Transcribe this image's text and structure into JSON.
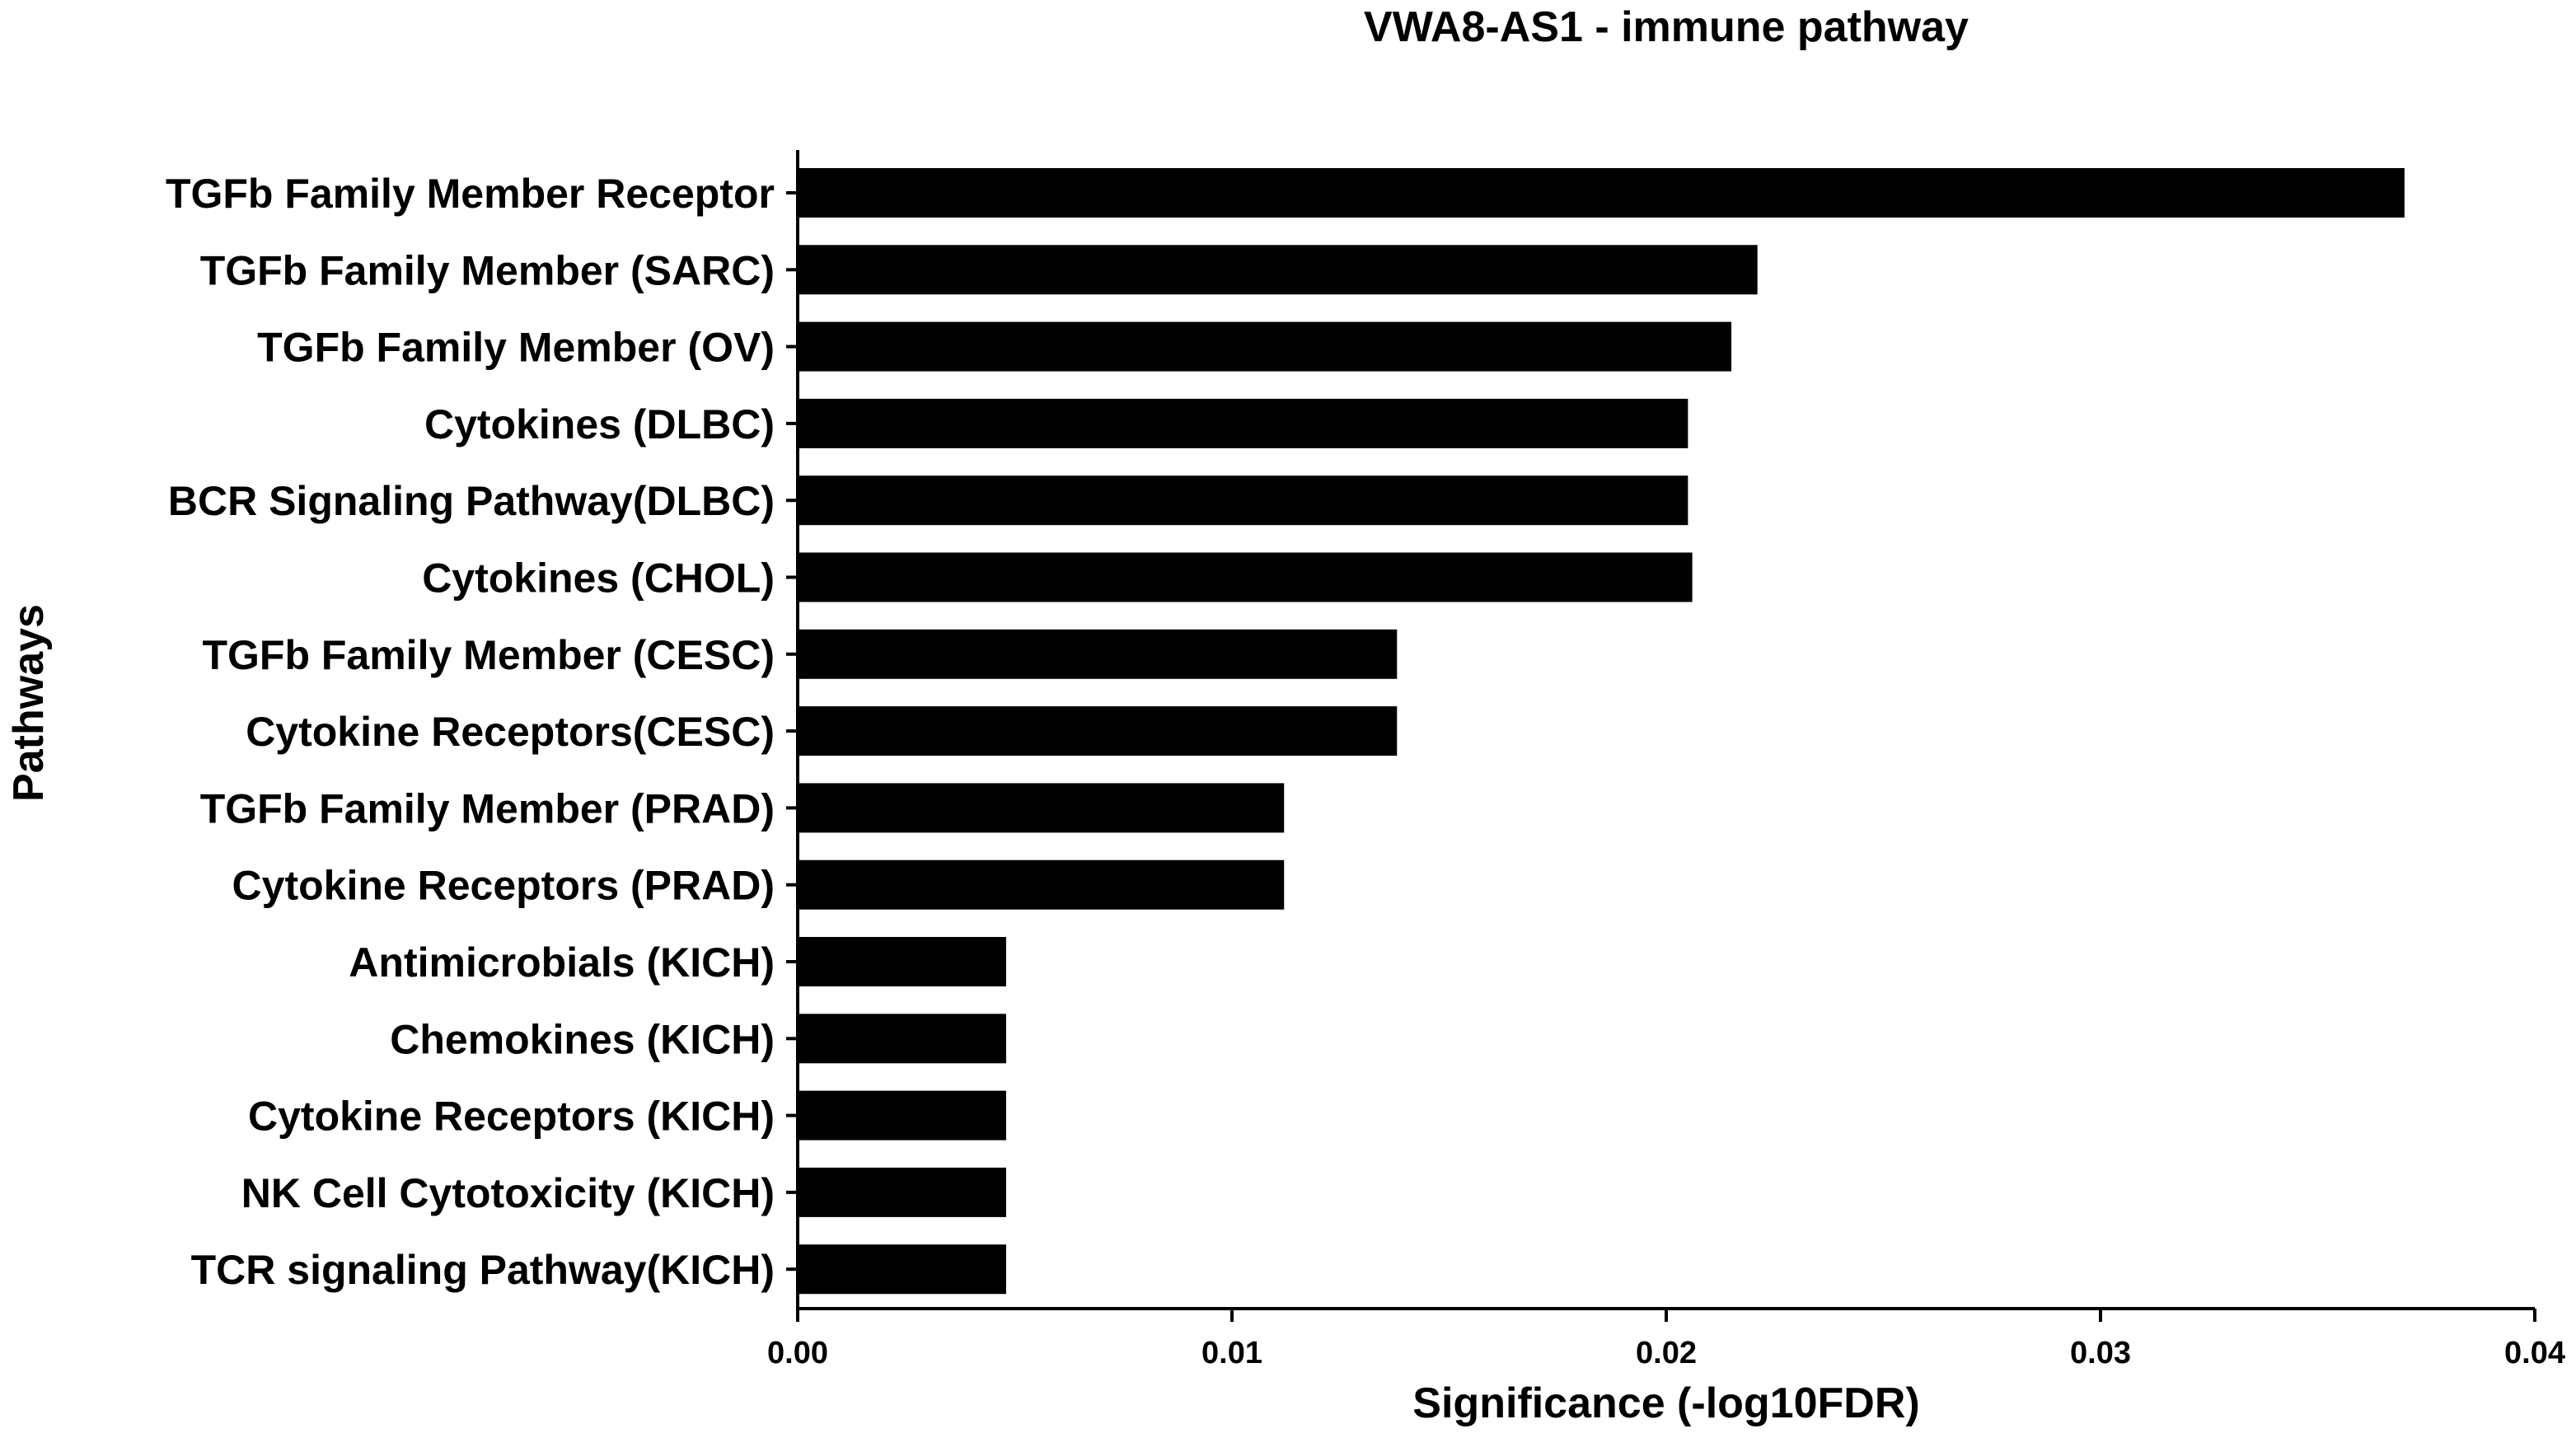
{
  "chart_data": {
    "type": "bar",
    "orientation": "horizontal",
    "title": "VWA8-AS1 - immune pathway",
    "xlabel": "Significance (-log10FDR)",
    "ylabel": "Pathways",
    "xlim": [
      0,
      0.04
    ],
    "xticks": [
      0,
      0.01,
      0.02,
      0.03,
      0.04
    ],
    "xtick_labels": [
      "0.00",
      "0.01",
      "0.02",
      "0.03",
      "0.04"
    ],
    "grid": false,
    "bar_color": "#000000",
    "categories": [
      "TGFb Family Member Receptor",
      "TGFb Family Member (SARC)",
      "TGFb Family Member (OV)",
      "Cytokines (DLBC)",
      "BCR Signaling Pathway(DLBC)",
      "Cytokines (CHOL)",
      "TGFb Family Member (CESC)",
      "Cytokine Receptors(CESC)",
      "TGFb Family Member (PRAD)",
      "Cytokine Receptors (PRAD)",
      "Antimicrobials (KICH)",
      "Chemokines (KICH)",
      "Cytokine Receptors (KICH)",
      "NK Cell Cytotoxicity (KICH)",
      "TCR signaling Pathway(KICH)"
    ],
    "values": [
      0.037,
      0.0221,
      0.0215,
      0.0205,
      0.0205,
      0.0206,
      0.0138,
      0.0138,
      0.0112,
      0.0112,
      0.0048,
      0.0048,
      0.0048,
      0.0048,
      0.0048
    ]
  }
}
